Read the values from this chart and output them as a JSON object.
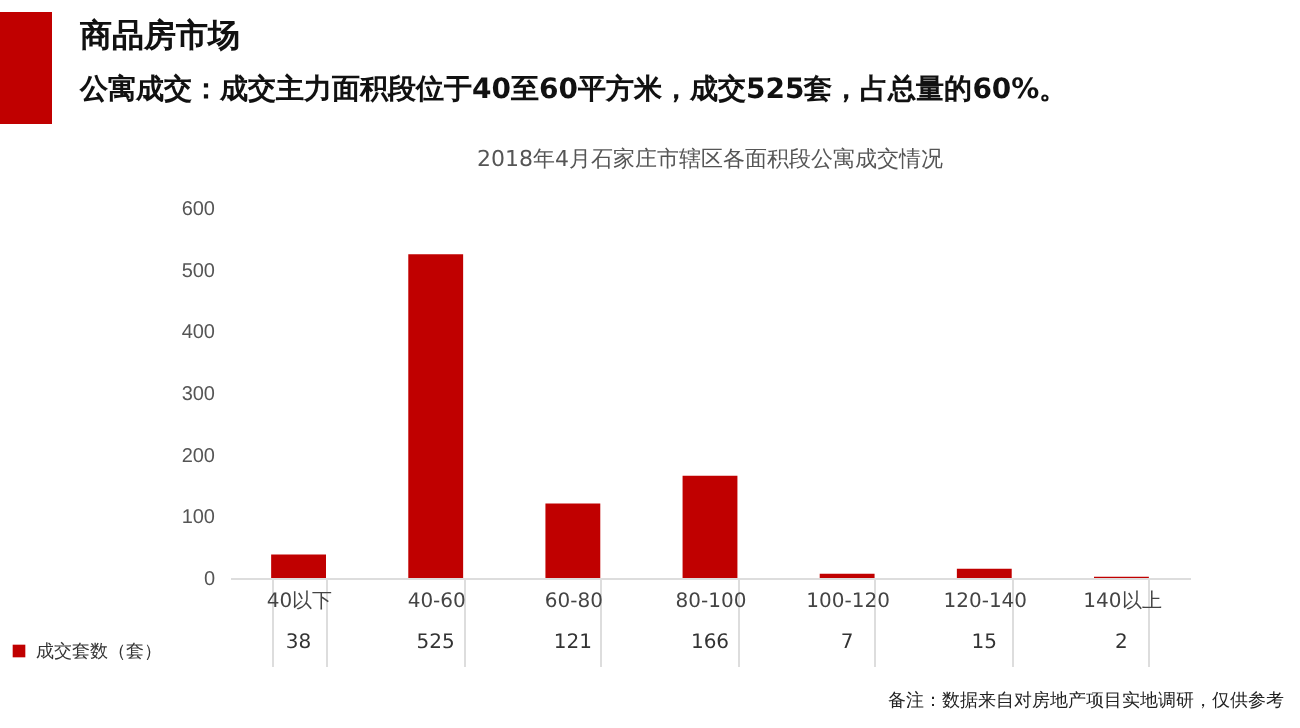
{
  "chart_data": {
    "type": "bar",
    "title": "2018年4月石家庄市辖区各面积段公寓成交情况",
    "subtitle": "公寓成交：成交主力面积段位于40至60平方米，成交525套，占总量的60%。",
    "annotations": [
      "商品房市场",
      "备注：数据来自对房地产项目实地调研，仅供参考"
    ],
    "categories": [
      "40以下",
      "40-60",
      "60-80",
      "80-100",
      "100-120",
      "120-140",
      "140以上"
    ],
    "series": [
      {
        "name": "成交套数（套）",
        "color": "#c00000",
        "values": [
          38,
          525,
          121,
          166,
          7,
          15,
          2
        ]
      }
    ],
    "ylim": [
      0,
      600
    ],
    "yticks": [
      0,
      100,
      200,
      300,
      400,
      500,
      600
    ],
    "data_labels": true,
    "legend": "bottom left"
  }
}
